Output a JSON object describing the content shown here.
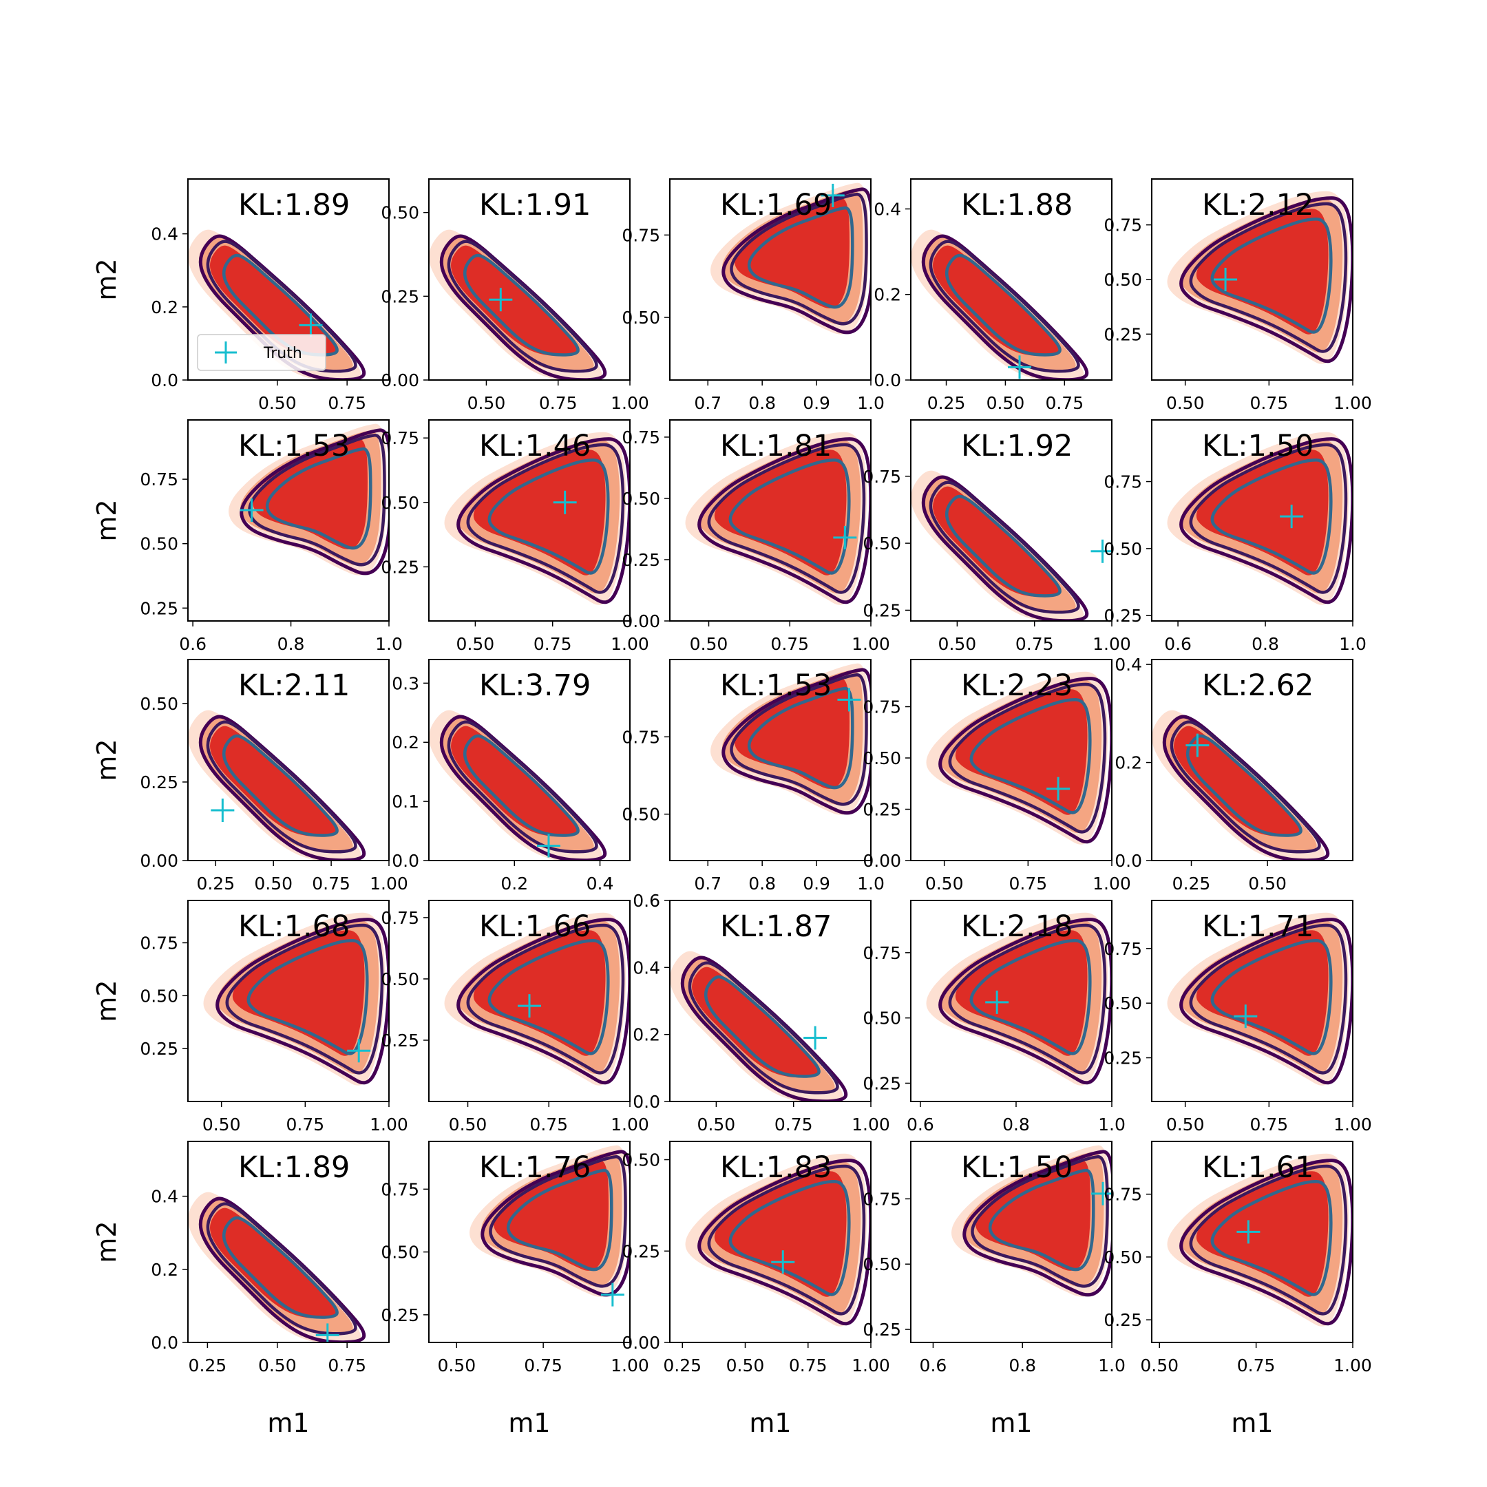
{
  "figure": {
    "xlabel": "m1",
    "ylabel": "m2",
    "legend_label": "Truth",
    "colors": {
      "truth_marker": "#17becf",
      "filled_inner": "#de2d26",
      "filled_mid": "#f4a582",
      "filled_outer": "#fde0d2",
      "contour_inner": "#31688e",
      "contour_mid": "#3b1a5e",
      "contour_outer": "#440154"
    }
  },
  "chart_data": [
    {
      "type": "scatter",
      "shape": "diagonal",
      "kl": "KL:1.89",
      "xlim": [
        0.18,
        0.9
      ],
      "ylim": [
        0,
        0.55
      ],
      "xticks": [
        "0.50",
        "0.75"
      ],
      "xtick_values": [
        0.5,
        0.75
      ],
      "yticks": [
        "0.0",
        "0.2",
        "0.4"
      ],
      "ytick_values": [
        0,
        0.2,
        0.4
      ],
      "truth": [
        0.62,
        0.15
      ],
      "legend": "lower-left"
    },
    {
      "type": "scatter",
      "shape": "diagonal",
      "kl": "KL:1.91",
      "xlim": [
        0.3,
        1.0
      ],
      "ylim": [
        0,
        0.6
      ],
      "xticks": [
        "0.50",
        "0.75",
        "1.00"
      ],
      "xtick_values": [
        0.5,
        0.75,
        1.0
      ],
      "yticks": [
        "0.00",
        "0.25",
        "0.50"
      ],
      "ytick_values": [
        0,
        0.25,
        0.5
      ],
      "truth": [
        0.55,
        0.24
      ]
    },
    {
      "type": "scatter",
      "shape": "upper",
      "kl": "KL:1.69",
      "xlim": [
        0.63,
        1.0
      ],
      "ylim": [
        0.31,
        0.92
      ],
      "xticks": [
        "0.7",
        "0.8",
        "0.9",
        "1.0"
      ],
      "xtick_values": [
        0.7,
        0.8,
        0.9,
        1.0
      ],
      "yticks": [
        "0.50",
        "0.75"
      ],
      "ytick_values": [
        0.5,
        0.75
      ],
      "truth": [
        0.93,
        0.87
      ]
    },
    {
      "type": "scatter",
      "shape": "diagonal",
      "kl": "KL:1.88",
      "xlim": [
        0.1,
        0.95
      ],
      "ylim": [
        0,
        0.47
      ],
      "xticks": [
        "0.25",
        "0.50",
        "0.75"
      ],
      "xtick_values": [
        0.25,
        0.5,
        0.75
      ],
      "yticks": [
        "0.0",
        "0.2",
        "0.4"
      ],
      "ytick_values": [
        0,
        0.2,
        0.4
      ],
      "truth": [
        0.56,
        0.03
      ]
    },
    {
      "type": "scatter",
      "shape": "triangle",
      "kl": "KL:2.12",
      "xlim": [
        0.4,
        1.0
      ],
      "ylim": [
        0.04,
        0.96
      ],
      "xticks": [
        "0.50",
        "0.75",
        "1.00"
      ],
      "xtick_values": [
        0.5,
        0.75,
        1.0
      ],
      "yticks": [
        "0.25",
        "0.50",
        "0.75"
      ],
      "ytick_values": [
        0.25,
        0.5,
        0.75
      ],
      "truth": [
        0.62,
        0.5
      ]
    },
    {
      "type": "scatter",
      "shape": "upper",
      "kl": "KL:1.53",
      "xlim": [
        0.59,
        1.0
      ],
      "ylim": [
        0.2,
        0.98
      ],
      "xticks": [
        "0.6",
        "0.8",
        "1.0"
      ],
      "xtick_values": [
        0.6,
        0.8,
        1.0
      ],
      "yticks": [
        "0.25",
        "0.50",
        "0.75"
      ],
      "ytick_values": [
        0.25,
        0.5,
        0.75
      ],
      "truth": [
        0.72,
        0.63
      ]
    },
    {
      "type": "scatter",
      "shape": "triangle",
      "kl": "KL:1.46",
      "xlim": [
        0.35,
        1.0
      ],
      "ylim": [
        0.04,
        0.82
      ],
      "xticks": [
        "0.50",
        "0.75",
        "1.00"
      ],
      "xtick_values": [
        0.5,
        0.75,
        1.0
      ],
      "yticks": [
        "0.25",
        "0.50",
        "0.75"
      ],
      "ytick_values": [
        0.25,
        0.5,
        0.75
      ],
      "truth": [
        0.79,
        0.5
      ]
    },
    {
      "type": "scatter",
      "shape": "triangle",
      "kl": "KL:1.81",
      "xlim": [
        0.38,
        1.0
      ],
      "ylim": [
        0,
        0.82
      ],
      "xticks": [
        "0.50",
        "0.75",
        "1.00"
      ],
      "xtick_values": [
        0.5,
        0.75,
        1.0
      ],
      "yticks": [
        "0.00",
        "0.25",
        "0.50",
        "0.75"
      ],
      "ytick_values": [
        0,
        0.25,
        0.5,
        0.75
      ],
      "truth": [
        0.92,
        0.34
      ]
    },
    {
      "type": "scatter",
      "shape": "diagonal",
      "kl": "KL:1.92",
      "xlim": [
        0.35,
        1.0
      ],
      "ylim": [
        0.21,
        0.96
      ],
      "xticks": [
        "0.50",
        "0.75",
        "1.00"
      ],
      "xtick_values": [
        0.5,
        0.75,
        1.0
      ],
      "yticks": [
        "0.25",
        "0.50",
        "0.75"
      ],
      "ytick_values": [
        0.25,
        0.5,
        0.75
      ],
      "truth": [
        0.97,
        0.47
      ]
    },
    {
      "type": "scatter",
      "shape": "triangle",
      "kl": "KL:1.50",
      "xlim": [
        0.54,
        1.0
      ],
      "ylim": [
        0.23,
        0.98
      ],
      "xticks": [
        "0.6",
        "0.8",
        "1.0"
      ],
      "xtick_values": [
        0.6,
        0.8,
        1.0
      ],
      "yticks": [
        "0.25",
        "0.50",
        "0.75"
      ],
      "ytick_values": [
        0.25,
        0.5,
        0.75
      ],
      "truth": [
        0.86,
        0.62
      ]
    },
    {
      "type": "scatter",
      "shape": "diagonal",
      "kl": "KL:2.11",
      "xlim": [
        0.13,
        1.0
      ],
      "ylim": [
        0,
        0.64
      ],
      "xticks": [
        "0.25",
        "0.50",
        "0.75",
        "1.00"
      ],
      "xtick_values": [
        0.25,
        0.5,
        0.75,
        1.0
      ],
      "yticks": [
        "0.00",
        "0.25",
        "0.50"
      ],
      "ytick_values": [
        0,
        0.25,
        0.5
      ],
      "truth": [
        0.28,
        0.16
      ]
    },
    {
      "type": "scatter",
      "shape": "diagonal",
      "kl": "KL:3.79",
      "xlim": [
        0.0,
        0.47
      ],
      "ylim": [
        0,
        0.34
      ],
      "xticks": [
        "0.2",
        "0.4"
      ],
      "xtick_values": [
        0.2,
        0.4
      ],
      "yticks": [
        "0.0",
        "0.1",
        "0.2",
        "0.3"
      ],
      "ytick_values": [
        0,
        0.1,
        0.2,
        0.3
      ],
      "truth": [
        0.28,
        0.025
      ]
    },
    {
      "type": "scatter",
      "shape": "upper",
      "kl": "KL:1.53",
      "xlim": [
        0.63,
        1.0
      ],
      "ylim": [
        0.35,
        1.0
      ],
      "xticks": [
        "0.7",
        "0.8",
        "0.9",
        "1.0"
      ],
      "xtick_values": [
        0.7,
        0.8,
        0.9,
        1.0
      ],
      "yticks": [
        "0.50",
        "0.75"
      ],
      "ytick_values": [
        0.5,
        0.75
      ],
      "truth": [
        0.96,
        0.87
      ]
    },
    {
      "type": "scatter",
      "shape": "triangle",
      "kl": "KL:2.23",
      "xlim": [
        0.4,
        1.0
      ],
      "ylim": [
        0,
        0.98
      ],
      "xticks": [
        "0.50",
        "0.75",
        "1.00"
      ],
      "xtick_values": [
        0.5,
        0.75,
        1.0
      ],
      "yticks": [
        "0.00",
        "0.25",
        "0.50",
        "0.75"
      ],
      "ytick_values": [
        0,
        0.25,
        0.5,
        0.75
      ],
      "truth": [
        0.84,
        0.35
      ]
    },
    {
      "type": "scatter",
      "shape": "diagonal",
      "kl": "KL:2.62",
      "xlim": [
        0.12,
        0.78
      ],
      "ylim": [
        0,
        0.41
      ],
      "xticks": [
        "0.25",
        "0.50"
      ],
      "xtick_values": [
        0.25,
        0.5
      ],
      "yticks": [
        "0.0",
        "0.2",
        "0.4"
      ],
      "ytick_values": [
        0,
        0.2,
        0.4
      ],
      "truth": [
        0.27,
        0.235
      ]
    },
    {
      "type": "scatter",
      "shape": "triangle",
      "kl": "KL:1.68",
      "xlim": [
        0.4,
        1.0
      ],
      "ylim": [
        0,
        0.95
      ],
      "xticks": [
        "0.50",
        "0.75",
        "1.00"
      ],
      "xtick_values": [
        0.5,
        0.75,
        1.0
      ],
      "yticks": [
        "0.25",
        "0.50",
        "0.75"
      ],
      "ytick_values": [
        0.25,
        0.5,
        0.75
      ],
      "truth": [
        0.91,
        0.24
      ]
    },
    {
      "type": "scatter",
      "shape": "triangle",
      "kl": "KL:1.66",
      "xlim": [
        0.38,
        1.0
      ],
      "ylim": [
        0,
        0.82
      ],
      "xticks": [
        "0.50",
        "0.75",
        "1.00"
      ],
      "xtick_values": [
        0.5,
        0.75,
        1.0
      ],
      "yticks": [
        "0.25",
        "0.50",
        "0.75"
      ],
      "ytick_values": [
        0.25,
        0.5,
        0.75
      ],
      "truth": [
        0.69,
        0.39
      ]
    },
    {
      "type": "scatter",
      "shape": "diagonal",
      "kl": "KL:1.87",
      "xlim": [
        0.35,
        1.0
      ],
      "ylim": [
        0,
        0.6
      ],
      "xticks": [
        "0.50",
        "0.75",
        "1.00"
      ],
      "xtick_values": [
        0.5,
        0.75,
        1.0
      ],
      "yticks": [
        "0.0",
        "0.2",
        "0.4",
        "0.6"
      ],
      "ytick_values": [
        0,
        0.2,
        0.4,
        0.6
      ],
      "truth": [
        0.82,
        0.19
      ]
    },
    {
      "type": "scatter",
      "shape": "triangle",
      "kl": "KL:2.18",
      "xlim": [
        0.58,
        1.0
      ],
      "ylim": [
        0.18,
        0.95
      ],
      "xticks": [
        "0.6",
        "0.8",
        "1.0"
      ],
      "xtick_values": [
        0.6,
        0.8,
        1.0
      ],
      "yticks": [
        "0.25",
        "0.50",
        "0.75"
      ],
      "ytick_values": [
        0.25,
        0.5,
        0.75
      ],
      "truth": [
        0.76,
        0.56
      ]
    },
    {
      "type": "scatter",
      "shape": "triangle",
      "kl": "KL:1.71",
      "xlim": [
        0.4,
        1.0
      ],
      "ylim": [
        0.05,
        0.97
      ],
      "xticks": [
        "0.50",
        "0.75",
        "1.00"
      ],
      "xtick_values": [
        0.5,
        0.75,
        1.0
      ],
      "yticks": [
        "0.25",
        "0.50",
        "0.75"
      ],
      "ytick_values": [
        0.25,
        0.5,
        0.75
      ],
      "truth": [
        0.68,
        0.44
      ]
    },
    {
      "type": "scatter",
      "shape": "diagonal",
      "kl": "KL:1.89",
      "xlim": [
        0.18,
        0.9
      ],
      "ylim": [
        0,
        0.55
      ],
      "xticks": [
        "0.25",
        "0.50",
        "0.75"
      ],
      "xtick_values": [
        0.25,
        0.5,
        0.75
      ],
      "yticks": [
        "0.0",
        "0.2",
        "0.4"
      ],
      "ytick_values": [
        0,
        0.2,
        0.4
      ],
      "truth": [
        0.68,
        0.02
      ]
    },
    {
      "type": "scatter",
      "shape": "upper",
      "kl": "KL:1.76",
      "xlim": [
        0.42,
        1.0
      ],
      "ylim": [
        0.14,
        0.94
      ],
      "xticks": [
        "0.50",
        "0.75",
        "1.00"
      ],
      "xtick_values": [
        0.5,
        0.75,
        1.0
      ],
      "yticks": [
        "0.25",
        "0.50",
        "0.75"
      ],
      "ytick_values": [
        0.25,
        0.5,
        0.75
      ],
      "truth": [
        0.95,
        0.33
      ]
    },
    {
      "type": "scatter",
      "shape": "triangle",
      "kl": "KL:1.83",
      "xlim": [
        0.2,
        1.0
      ],
      "ylim": [
        0,
        0.55
      ],
      "xticks": [
        "0.25",
        "0.50",
        "0.75",
        "1.00"
      ],
      "xtick_values": [
        0.25,
        0.5,
        0.75,
        1.0
      ],
      "yticks": [
        "0.00",
        "0.25",
        "0.50"
      ],
      "ytick_values": [
        0,
        0.25,
        0.5
      ],
      "truth": [
        0.65,
        0.22
      ]
    },
    {
      "type": "scatter",
      "shape": "upper",
      "kl": "KL:1.50",
      "xlim": [
        0.55,
        1.0
      ],
      "ylim": [
        0.2,
        0.97
      ],
      "xticks": [
        "0.6",
        "0.8",
        "1.0"
      ],
      "xtick_values": [
        0.6,
        0.8,
        1.0
      ],
      "yticks": [
        "0.25",
        "0.50",
        "0.75"
      ],
      "ytick_values": [
        0.25,
        0.5,
        0.75
      ],
      "truth": [
        0.98,
        0.77
      ]
    },
    {
      "type": "scatter",
      "shape": "triangle",
      "kl": "KL:1.61",
      "xlim": [
        0.48,
        1.0
      ],
      "ylim": [
        0.16,
        0.96
      ],
      "xticks": [
        "0.50",
        "0.75",
        "1.00"
      ],
      "xtick_values": [
        0.5,
        0.75,
        1.0
      ],
      "yticks": [
        "0.25",
        "0.50",
        "0.75"
      ],
      "ytick_values": [
        0.25,
        0.5,
        0.75
      ],
      "truth": [
        0.73,
        0.6
      ]
    }
  ]
}
